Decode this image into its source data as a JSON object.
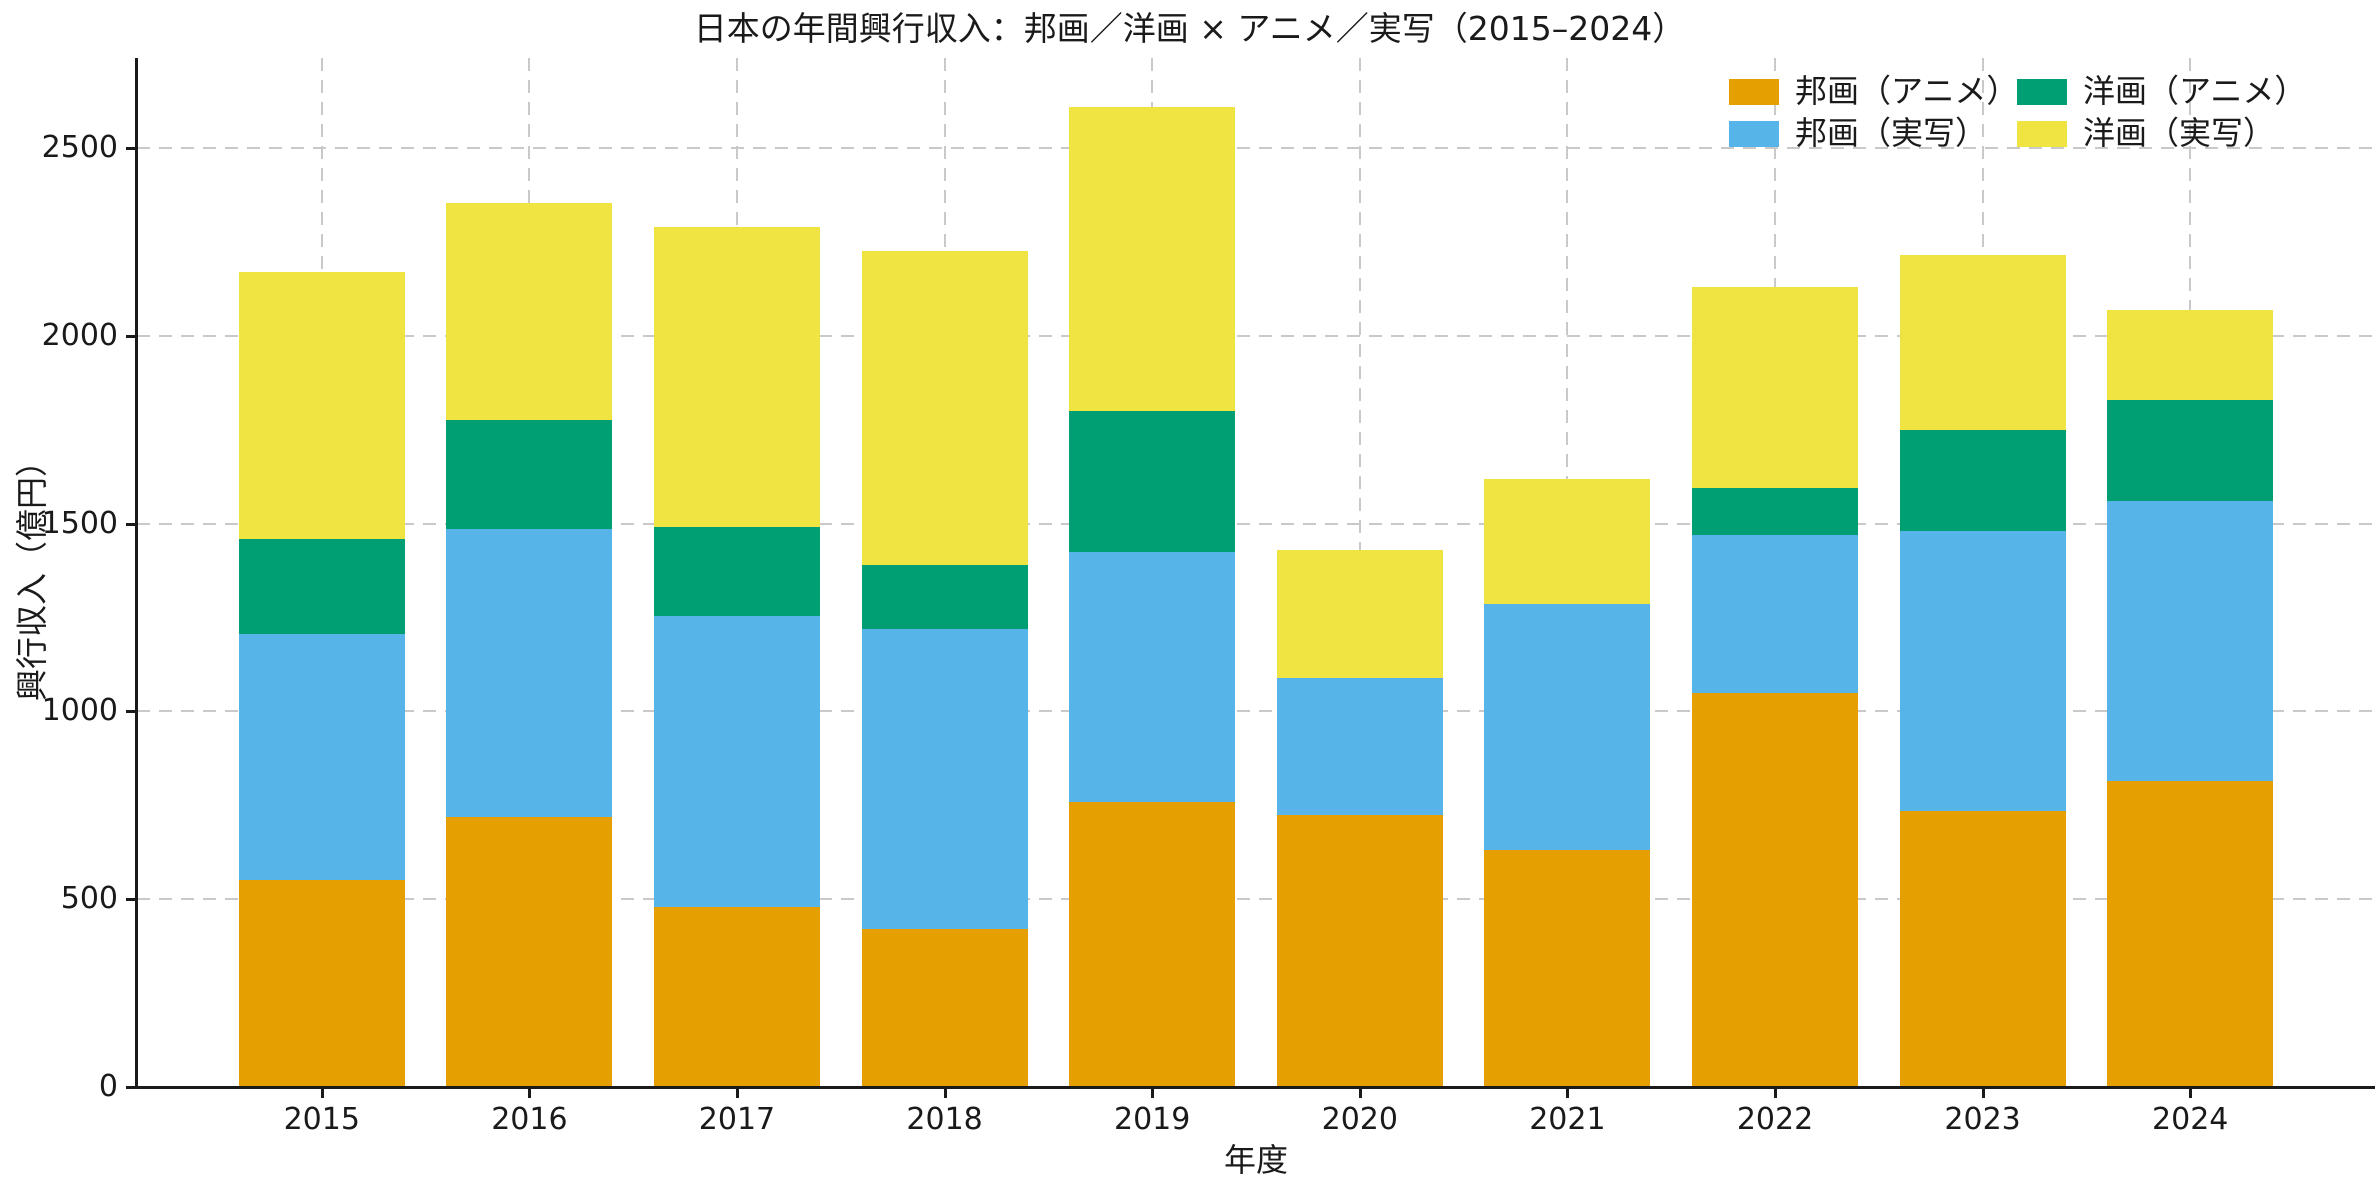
{
  "chart_data": {
    "type": "bar",
    "stacked": true,
    "title": "日本の年間興行収入：邦画／洋画 × アニメ／実写（2015–2024）",
    "xlabel": "年度",
    "ylabel": "興行収入（億円）",
    "categories": [
      "2015",
      "2016",
      "2017",
      "2018",
      "2019",
      "2020",
      "2021",
      "2022",
      "2023",
      "2024"
    ],
    "series": [
      {
        "name": "邦画（アニメ）",
        "color": "#E69F00",
        "values": [
          550,
          720,
          480,
          420,
          760,
          725,
          630,
          1050,
          735,
          815
        ]
      },
      {
        "name": "邦画（実写）",
        "color": "#56B4E9",
        "values": [
          655,
          765,
          775,
          800,
          665,
          365,
          655,
          420,
          745,
          745
        ]
      },
      {
        "name": "洋画（アニメ）",
        "color": "#009E73",
        "values": [
          255,
          290,
          235,
          170,
          375,
          0,
          0,
          125,
          270,
          270
        ]
      },
      {
        "name": "洋画（実写）",
        "color": "#F0E442",
        "values": [
          710,
          580,
          800,
          835,
          810,
          340,
          335,
          535,
          465,
          240
        ]
      }
    ],
    "stacked_totals": [
      2170,
      2355,
      2290,
      2225,
      2610,
      1430,
      1620,
      2130,
      2215,
      2070
    ],
    "yticks": [
      0,
      500,
      1000,
      1500,
      2000,
      2500
    ],
    "ylim": [
      0,
      2740
    ],
    "grid": "both-axes dashed",
    "legend_position": "upper-right inside plot, 2 columns, no frame"
  },
  "colors": {
    "background": "#ffffff",
    "grid": "#c9c9c9",
    "axis": "#1a1a1a",
    "text": "#1a1a1a"
  }
}
